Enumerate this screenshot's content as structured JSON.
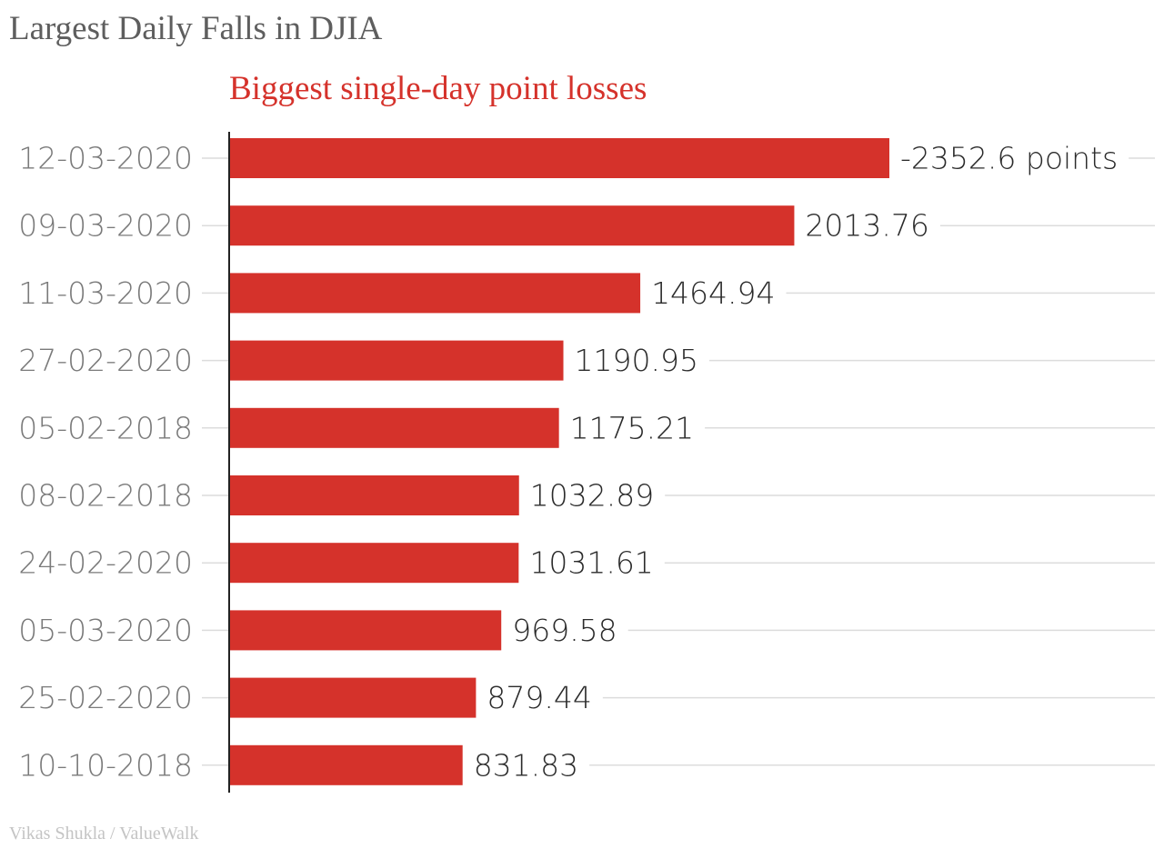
{
  "chart_data": {
    "type": "bar",
    "orientation": "horizontal",
    "title": "Largest Daily Falls in DJIA",
    "subtitle": "Biggest single-day point losses",
    "credit": "Vikas Shukla / ValueWalk",
    "categories": [
      "12-03-2020",
      "09-03-2020",
      "11-03-2020",
      "27-02-2020",
      "05-02-2018",
      "08-02-2018",
      "24-02-2020",
      "05-03-2020",
      "25-02-2020",
      "10-10-2018"
    ],
    "values": [
      2352.6,
      2013.76,
      1464.94,
      1190.95,
      1175.21,
      1032.89,
      1031.61,
      969.58,
      879.44,
      831.83
    ],
    "data_labels": [
      "-2352.6 points",
      "2013.76",
      "1464.94",
      "1190.95",
      "1175.21",
      "1032.89",
      "1031.61",
      "969.58",
      "879.44",
      "831.83"
    ],
    "xlim": [
      0,
      2352.6
    ],
    "grid": true,
    "colors": {
      "bar": "#d5322b",
      "grid": "#dcdcdc",
      "axis": "#222222"
    }
  }
}
